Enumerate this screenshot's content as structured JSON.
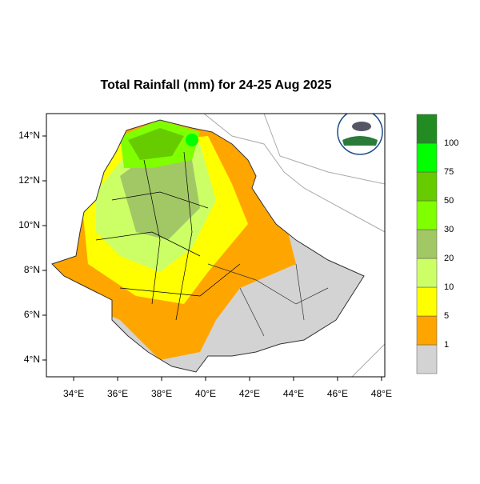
{
  "chart_data": {
    "type": "map",
    "title": "Total Rainfall (mm) for 24-25 Aug 2025",
    "xlim": [
      32.76,
      48.15
    ],
    "ylim": [
      3.25,
      15.0
    ],
    "xticks": [
      {
        "value": 34,
        "label": "34°E"
      },
      {
        "value": 36,
        "label": "36°E"
      },
      {
        "value": 38,
        "label": "38°E"
      },
      {
        "value": 40,
        "label": "40°E"
      },
      {
        "value": 42,
        "label": "42°E"
      },
      {
        "value": 44,
        "label": "44°E"
      },
      {
        "value": 46,
        "label": "46°E"
      },
      {
        "value": 48,
        "label": "48°E"
      }
    ],
    "yticks": [
      {
        "value": 4,
        "label": "4°N"
      },
      {
        "value": 6,
        "label": "6°N"
      },
      {
        "value": 8,
        "label": "8°N"
      },
      {
        "value": 10,
        "label": "10°N"
      },
      {
        "value": 12,
        "label": "12°N"
      },
      {
        "value": 14,
        "label": "14°N"
      }
    ],
    "colorbar": {
      "levels": [
        1,
        5,
        10,
        20,
        30,
        50,
        75,
        100
      ],
      "colors": [
        "#d3d3d3",
        "#ffa500",
        "#ffff00",
        "#ccff66",
        "#a2c866",
        "#80ff00",
        "#66cc00",
        "#00ff00",
        "#228b22"
      ]
    }
  }
}
